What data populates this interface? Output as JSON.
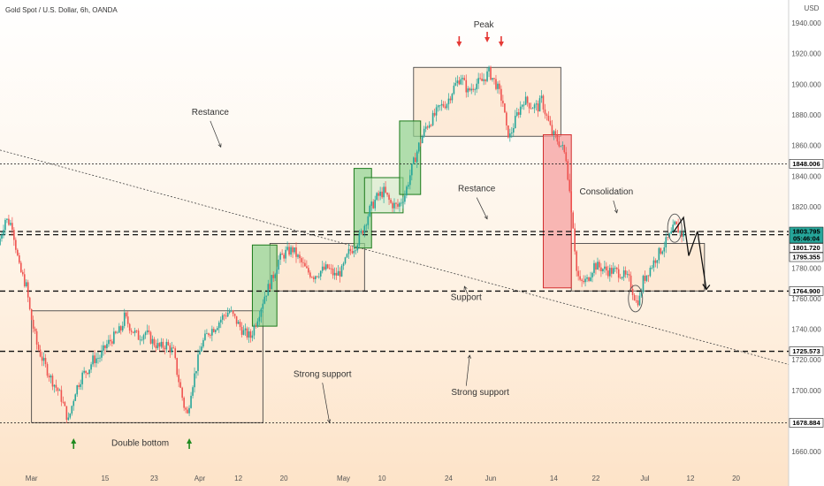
{
  "header": {
    "symbol": "Gold Spot / U.S. Dollar, 6h, OANDA",
    "currency": "USD"
  },
  "colors": {
    "up": "#26a69a",
    "down": "#ef5350",
    "box_fill": "#fde8d2",
    "box_stroke": "#333333",
    "green_fill": "#8fd18f",
    "green_stroke": "#1b7a1b",
    "red_fill": "#f5a0a0",
    "red_stroke": "#d32f2f",
    "arrow_red": "#e53935",
    "arrow_green": "#1f8a1f"
  },
  "chart_data": {
    "type": "candlestick",
    "ylim": [
      1648,
      1955
    ],
    "xlim": [
      0,
      225
    ],
    "x_ticks": [
      {
        "x": 9,
        "label": "Mar"
      },
      {
        "x": 30,
        "label": "15"
      },
      {
        "x": 44,
        "label": "23"
      },
      {
        "x": 57,
        "label": "Apr"
      },
      {
        "x": 68,
        "label": "12"
      },
      {
        "x": 81,
        "label": "20"
      },
      {
        "x": 98,
        "label": "May"
      },
      {
        "x": 109,
        "label": "10"
      },
      {
        "x": 128,
        "label": "24"
      },
      {
        "x": 140,
        "label": "Jun"
      },
      {
        "x": 158,
        "label": "14"
      },
      {
        "x": 170,
        "label": "22"
      },
      {
        "x": 184,
        "label": "Jul"
      },
      {
        "x": 197,
        "label": "12"
      },
      {
        "x": 210,
        "label": "20"
      }
    ],
    "y_ticks": [
      1660,
      1680,
      1700,
      1720,
      1740,
      1760,
      1780,
      1800,
      1820,
      1840,
      1860,
      1880,
      1900,
      1920,
      1940
    ],
    "y_tick_labels": [
      "1660.000",
      "1680.000",
      "1700.000",
      "1720.000",
      "1740.000",
      "1760.000",
      "1780.000",
      "1800.000",
      "1820.000",
      "1840.000",
      "1860.000",
      "1880.000",
      "1900.000",
      "1920.000",
      "1940.000"
    ],
    "anchors": [
      [
        0,
        1795
      ],
      [
        2,
        1812
      ],
      [
        4,
        1808
      ],
      [
        6,
        1780
      ],
      [
        8,
        1768
      ],
      [
        9,
        1752
      ],
      [
        11,
        1730
      ],
      [
        13,
        1718
      ],
      [
        15,
        1708
      ],
      [
        17,
        1700
      ],
      [
        18,
        1695
      ],
      [
        20,
        1680
      ],
      [
        22,
        1700
      ],
      [
        24,
        1710
      ],
      [
        26,
        1715
      ],
      [
        27,
        1720
      ],
      [
        29,
        1722
      ],
      [
        31,
        1730
      ],
      [
        33,
        1735
      ],
      [
        35,
        1740
      ],
      [
        36,
        1748
      ],
      [
        38,
        1740
      ],
      [
        40,
        1735
      ],
      [
        42,
        1738
      ],
      [
        44,
        1732
      ],
      [
        46,
        1728
      ],
      [
        48,
        1730
      ],
      [
        50,
        1725
      ],
      [
        51,
        1712
      ],
      [
        53,
        1690
      ],
      [
        54,
        1684
      ],
      [
        55,
        1700
      ],
      [
        57,
        1720
      ],
      [
        58,
        1730
      ],
      [
        60,
        1738
      ],
      [
        62,
        1742
      ],
      [
        64,
        1748
      ],
      [
        66,
        1752
      ],
      [
        68,
        1745
      ],
      [
        70,
        1738
      ],
      [
        72,
        1735
      ],
      [
        74,
        1748
      ],
      [
        76,
        1762
      ],
      [
        78,
        1772
      ],
      [
        80,
        1785
      ],
      [
        82,
        1790
      ],
      [
        84,
        1792
      ],
      [
        86,
        1785
      ],
      [
        88,
        1778
      ],
      [
        90,
        1775
      ],
      [
        92,
        1778
      ],
      [
        94,
        1780
      ],
      [
        96,
        1775
      ],
      [
        98,
        1778
      ],
      [
        100,
        1790
      ],
      [
        102,
        1795
      ],
      [
        104,
        1805
      ],
      [
        106,
        1818
      ],
      [
        108,
        1826
      ],
      [
        110,
        1830
      ],
      [
        112,
        1822
      ],
      [
        114,
        1820
      ],
      [
        116,
        1828
      ],
      [
        118,
        1845
      ],
      [
        120,
        1860
      ],
      [
        122,
        1872
      ],
      [
        124,
        1878
      ],
      [
        126,
        1885
      ],
      [
        128,
        1888
      ],
      [
        130,
        1898
      ],
      [
        132,
        1905
      ],
      [
        134,
        1895
      ],
      [
        136,
        1900
      ],
      [
        138,
        1902
      ],
      [
        140,
        1908
      ],
      [
        142,
        1900
      ],
      [
        144,
        1888
      ],
      [
        145,
        1870
      ],
      [
        146,
        1866
      ],
      [
        148,
        1880
      ],
      [
        150,
        1890
      ],
      [
        152,
        1886
      ],
      [
        154,
        1885
      ],
      [
        155,
        1890
      ],
      [
        156,
        1882
      ],
      [
        158,
        1868
      ],
      [
        160,
        1862
      ],
      [
        161,
        1858
      ],
      [
        162,
        1852
      ],
      [
        163,
        1830
      ],
      [
        164,
        1808
      ],
      [
        165,
        1778
      ],
      [
        166,
        1770
      ],
      [
        168,
        1772
      ],
      [
        170,
        1782
      ],
      [
        172,
        1780
      ],
      [
        174,
        1778
      ],
      [
        176,
        1778
      ],
      [
        178,
        1776
      ],
      [
        180,
        1772
      ],
      [
        181,
        1765
      ],
      [
        182,
        1758
      ],
      [
        183,
        1760
      ],
      [
        184,
        1772
      ],
      [
        186,
        1780
      ],
      [
        188,
        1788
      ],
      [
        190,
        1795
      ],
      [
        192,
        1802
      ],
      [
        193,
        1808
      ],
      [
        194,
        1805
      ],
      [
        195,
        1802
      ]
    ],
    "markers": {
      "peak_arrows_x": [
        131,
        139,
        143
      ],
      "bottom_arrows_x": [
        21,
        54
      ]
    },
    "levels": [
      {
        "value": 1848.006,
        "label": "1848.006",
        "style": "dotted",
        "tag_bg": "#ffffff",
        "tag_fg": "#000000"
      },
      {
        "value": 1803.795,
        "label": "1803.795",
        "sublabel": "05:46:04",
        "style": "dashed",
        "tag_bg": "#26a69a",
        "tag_fg": "#ffffff"
      },
      {
        "value": 1801.72,
        "label": "1801.720",
        "style": "dashed",
        "tag_bg": "#ffffff",
        "tag_fg": "#000000"
      },
      {
        "value": 1795.355,
        "label": "1795.355",
        "style": "none",
        "tag_bg": "#ffffff",
        "tag_fg": "#000000"
      },
      {
        "value": 1764.9,
        "label": "1764.900",
        "style": "dashed",
        "tag_bg": "#ffffff",
        "tag_fg": "#000000"
      },
      {
        "value": 1725.573,
        "label": "1725.573",
        "style": "dashed",
        "tag_bg": "#ffffff",
        "tag_fg": "#000000"
      },
      {
        "value": 1678.884,
        "label": "1678.884",
        "style": "dotted",
        "tag_bg": "#ffffff",
        "tag_fg": "#000000"
      }
    ],
    "boxes": [
      {
        "name": "double-bottom-range",
        "x0": 9,
        "x1": 75,
        "y0": 1679,
        "y1": 1752,
        "kind": "range"
      },
      {
        "name": "mid-consolidation-range",
        "x0": 77,
        "x1": 104,
        "y0": 1765,
        "y1": 1796,
        "kind": "range"
      },
      {
        "name": "peak-range",
        "x0": 118,
        "x1": 160,
        "y0": 1866,
        "y1": 1911,
        "kind": "range"
      },
      {
        "name": "current-consolidation-range",
        "x0": 163,
        "x1": 201,
        "y0": 1765,
        "y1": 1796,
        "kind": "range"
      },
      {
        "name": "impulse-1",
        "x0": 72,
        "x1": 79,
        "y0": 1742,
        "y1": 1795,
        "kind": "green"
      },
      {
        "name": "impulse-2",
        "x0": 101,
        "x1": 106,
        "y0": 1793,
        "y1": 1845,
        "kind": "green"
      },
      {
        "name": "impulse-3",
        "x0": 104,
        "x1": 115,
        "y0": 1816,
        "y1": 1839,
        "kind": "green-pale"
      },
      {
        "name": "impulse-4",
        "x0": 114,
        "x1": 120,
        "y0": 1828,
        "y1": 1876,
        "kind": "green"
      },
      {
        "name": "drop",
        "x0": 155,
        "x1": 163,
        "y0": 1767,
        "y1": 1867,
        "kind": "red"
      }
    ],
    "trendline": {
      "x0": 0,
      "y0": 1857,
      "x1": 225,
      "y1": 1717
    },
    "annotations": [
      {
        "text": "Peak",
        "x": 138,
        "y": 1937
      },
      {
        "text": "Restance",
        "x": 60,
        "y": 1880
      },
      {
        "text": "Restance",
        "x": 136,
        "y": 1830
      },
      {
        "text": "Consolidation",
        "x": 173,
        "y": 1828
      },
      {
        "text": "Support",
        "x": 133,
        "y": 1759
      },
      {
        "text": "Strong support",
        "x": 92,
        "y": 1709
      },
      {
        "text": "Strong support",
        "x": 137,
        "y": 1697
      },
      {
        "text": "Double bottom",
        "x": 40,
        "y": 1664
      }
    ]
  }
}
